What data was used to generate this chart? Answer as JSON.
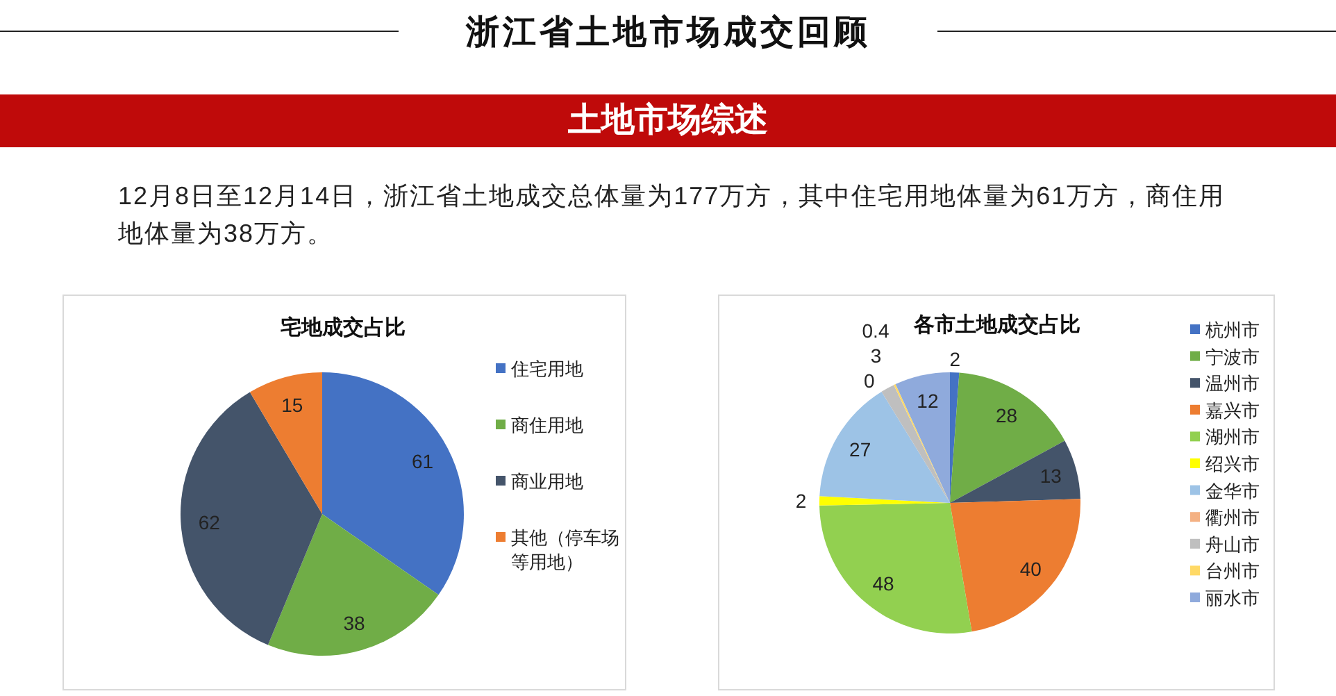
{
  "chart_data": [
    {
      "type": "other",
      "title": "浙江省土地市场成交回顾",
      "subtitle": "土地市场综述",
      "annotations": [
        "12月8日至12月14日，浙江省土地成交总体量为177万方，其中住宅用地体量为61万方，商住用地体量为38万方。"
      ]
    },
    {
      "type": "pie",
      "title": "宅地成交占比",
      "categories": [
        "住宅用地",
        "商住用地",
        "商业用地",
        "其他（停车场等用地）"
      ],
      "values": [
        61,
        38,
        62,
        15
      ],
      "colors": [
        "#4472c4",
        "#70ad47",
        "#44546a",
        "#ed7d31"
      ],
      "data_labels": true,
      "legend": "right"
    },
    {
      "type": "pie",
      "title": "各市土地成交占比",
      "categories": [
        "杭州市",
        "宁波市",
        "温州市",
        "嘉兴市",
        "湖州市",
        "绍兴市",
        "金华市",
        "衢州市",
        "舟山市",
        "台州市",
        "丽水市"
      ],
      "values": [
        2,
        28,
        13,
        40,
        48,
        2,
        27,
        0,
        3,
        0.4,
        12
      ],
      "value_labels": [
        "2",
        "28",
        "13",
        "40",
        "48",
        "2",
        "27",
        "0",
        "3",
        "0.4",
        "12"
      ],
      "colors": [
        "#4472c4",
        "#70ad47",
        "#44546a",
        "#ed7d31",
        "#92d050",
        "#ffff00",
        "#9dc3e6",
        "#f4b183",
        "#bfbfbf",
        "#ffd966",
        "#8faadc"
      ],
      "legend": "right"
    }
  ]
}
